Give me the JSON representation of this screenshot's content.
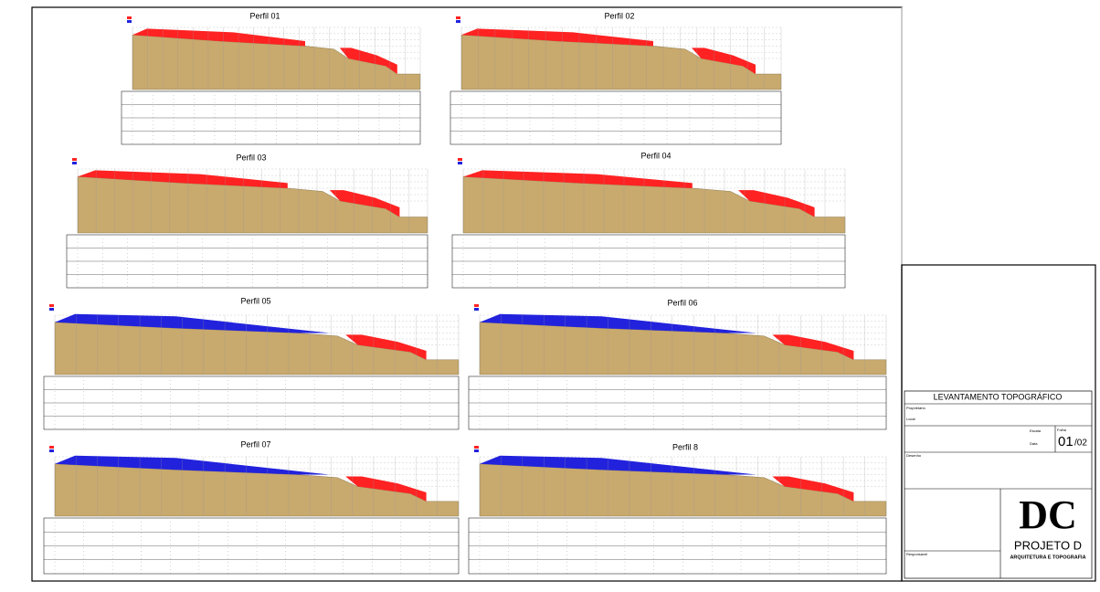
{
  "profiles": [
    {
      "title": "Perfil 01"
    },
    {
      "title": "Perfil 02"
    },
    {
      "title": "Perfil 03"
    },
    {
      "title": "Perfil 04"
    },
    {
      "title": "Perfil 05"
    },
    {
      "title": "Perfil 06"
    },
    {
      "title": "Perfil 07"
    },
    {
      "title": "Perfil 8"
    }
  ],
  "title_block": {
    "title": "LEVANTAMENTO TOPOGRÁFICO",
    "fields": [
      "Proprietário",
      "Local",
      "Escala",
      "Data",
      "Folha",
      "Desenho",
      "Responsável"
    ],
    "sheet": "01",
    "sheet_total": "/02",
    "logo": "DC",
    "company": "PROJETO D",
    "tagline": "ARQUITETURA E TOPOGRAFIA"
  }
}
